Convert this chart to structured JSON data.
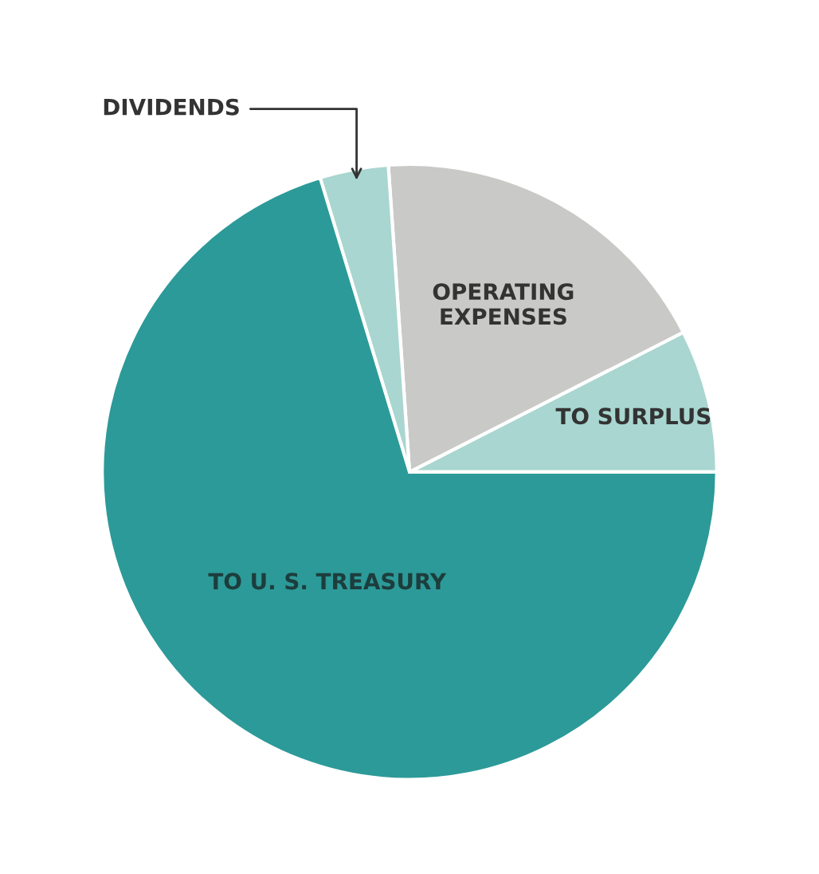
{
  "chart_data": {
    "type": "pie",
    "categories": [
      "TO SURPLUS",
      "OPERATING EXPENSES",
      "DIVIDENDS",
      "TO U. S. TREASURY"
    ],
    "values": [
      7.5,
      18.6,
      3.6,
      70.3
    ],
    "colors": [
      "#a9d6d0",
      "#c9c9c7",
      "#a9d6d0",
      "#2c9a98"
    ]
  }
}
